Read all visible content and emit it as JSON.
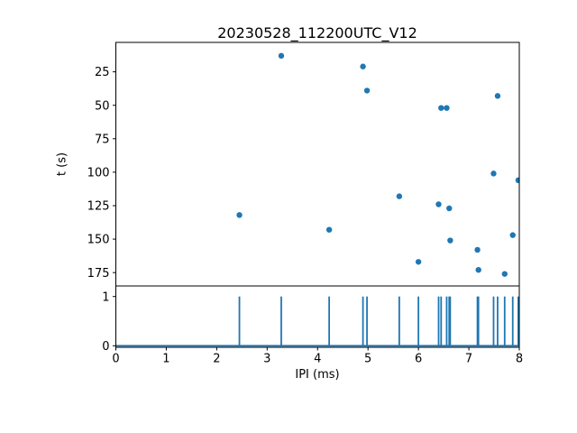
{
  "figure": {
    "title": "20230528_112200UTC_V12",
    "background_color": "#ffffff",
    "accent_color": "#1f77b4"
  },
  "chart_data": [
    {
      "type": "scatter",
      "title": "20230528_112200UTC_V12",
      "xlabel": "",
      "ylabel": "t (s)",
      "xlim": [
        0,
        8
      ],
      "ylim": [
        185,
        3
      ],
      "y_axis_inverted": true,
      "grid": false,
      "xticks": [
        0,
        1,
        2,
        3,
        4,
        5,
        6,
        7,
        8
      ],
      "yticks": [
        25,
        50,
        75,
        100,
        125,
        150,
        175
      ],
      "marker_color": "#1f77b4",
      "x": [
        2.45,
        3.28,
        4.23,
        4.9,
        4.98,
        5.62,
        6.0,
        6.4,
        6.45,
        6.56,
        6.61,
        6.63,
        7.17,
        7.19,
        7.49,
        7.57,
        7.71,
        7.87,
        7.98
      ],
      "y": [
        132,
        13,
        143,
        21,
        39,
        118,
        167,
        124,
        52,
        52,
        127,
        151,
        158,
        173,
        101,
        43,
        176,
        147,
        106
      ]
    },
    {
      "type": "line",
      "subtype": "pulse-train",
      "title": "",
      "xlabel": "IPI (ms)",
      "ylabel": "",
      "xlim": [
        0,
        8
      ],
      "ylim": [
        -0.03,
        1.21
      ],
      "grid": false,
      "xticks": [
        0,
        1,
        2,
        3,
        4,
        5,
        6,
        7,
        8
      ],
      "yticks": [
        0,
        1
      ],
      "line_color": "#1f77b4",
      "pulse_height": 1,
      "baseline_value": 0,
      "x_events": [
        2.45,
        3.28,
        4.23,
        4.9,
        4.98,
        5.62,
        6.0,
        6.4,
        6.45,
        6.56,
        6.61,
        6.63,
        7.17,
        7.19,
        7.49,
        7.57,
        7.71,
        7.87,
        7.98
      ]
    }
  ]
}
